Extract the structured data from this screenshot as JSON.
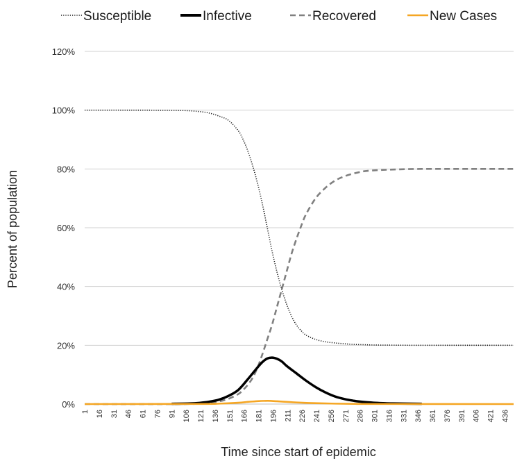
{
  "chart_data": {
    "type": "line",
    "title": "",
    "xlabel": "Time since start of epidemic",
    "ylabel": "Percent of population",
    "x_ticks": [
      "1",
      "16",
      "31",
      "46",
      "61",
      "76",
      "91",
      "106",
      "121",
      "136",
      "151",
      "166",
      "181",
      "196",
      "211",
      "226",
      "241",
      "256",
      "271",
      "286",
      "301",
      "316",
      "331",
      "346",
      "361",
      "376",
      "391",
      "406",
      "421",
      "436"
    ],
    "xlim": [
      1,
      445
    ],
    "ylim": [
      0,
      120
    ],
    "y_ticks": [
      "0%",
      "20%",
      "40%",
      "60%",
      "80%",
      "100%",
      "120%"
    ],
    "y_unit": "%",
    "grid": "horizontal",
    "legend_position": "top",
    "series": [
      {
        "name": "Susceptible",
        "color": "#1a1a1a",
        "style": "dotted",
        "x": [
          1,
          50,
          100,
          120,
          130,
          140,
          150,
          160,
          165,
          170,
          175,
          180,
          185,
          190,
          195,
          200,
          205,
          210,
          215,
          220,
          225,
          230,
          240,
          250,
          260,
          270,
          280,
          290,
          300,
          320,
          350,
          400,
          445
        ],
        "values": [
          100,
          100,
          99.9,
          99.5,
          99,
          98,
          96.5,
          93,
          90,
          86,
          81,
          75,
          68,
          60,
          52,
          45,
          39,
          34,
          30,
          27,
          25,
          23.5,
          22,
          21.2,
          20.8,
          20.5,
          20.3,
          20.2,
          20.1,
          20.05,
          20,
          20,
          20
        ]
      },
      {
        "name": "Infective",
        "color": "#000000",
        "style": "solid-thick",
        "x": [
          91,
          110,
          120,
          130,
          140,
          150,
          160,
          170,
          180,
          185,
          190,
          195,
          200,
          205,
          210,
          220,
          230,
          240,
          250,
          260,
          270,
          280,
          290,
          300,
          310,
          320,
          350
        ],
        "values": [
          0.1,
          0.2,
          0.4,
          0.8,
          1.5,
          2.8,
          4.8,
          8.5,
          12.5,
          14.3,
          15.5,
          15.8,
          15.4,
          14.5,
          13,
          10.5,
          8,
          5.8,
          4,
          2.6,
          1.7,
          1.1,
          0.7,
          0.45,
          0.3,
          0.2,
          0.1
        ]
      },
      {
        "name": "Recovered",
        "color": "#808080",
        "style": "dashed",
        "x": [
          1,
          100,
          120,
          130,
          140,
          150,
          160,
          165,
          170,
          175,
          180,
          185,
          190,
          195,
          200,
          205,
          210,
          215,
          220,
          225,
          230,
          240,
          250,
          260,
          270,
          280,
          290,
          300,
          320,
          350,
          400,
          445
        ],
        "values": [
          0,
          0,
          0.2,
          0.4,
          0.9,
          1.8,
          3.4,
          4.8,
          6.6,
          9,
          12.5,
          17,
          22,
          27,
          33,
          39,
          45,
          51,
          56,
          60.5,
          64.5,
          70,
          73.5,
          76,
          77.5,
          78.5,
          79.2,
          79.5,
          79.8,
          80,
          80,
          80
        ]
      },
      {
        "name": "New Cases",
        "color": "#f5a623",
        "style": "solid",
        "x": [
          1,
          120,
          140,
          160,
          170,
          180,
          190,
          195,
          200,
          210,
          220,
          240,
          260,
          280,
          300,
          445
        ],
        "values": [
          0,
          0.05,
          0.15,
          0.45,
          0.75,
          1.0,
          1.1,
          1.05,
          0.95,
          0.75,
          0.55,
          0.3,
          0.15,
          0.07,
          0.03,
          0
        ]
      }
    ]
  }
}
